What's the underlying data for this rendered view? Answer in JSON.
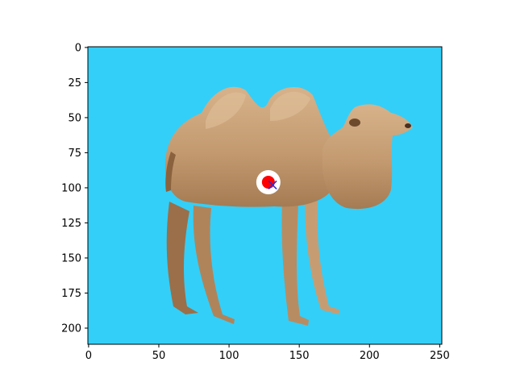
{
  "chart_data": {
    "type": "scatter",
    "title": "",
    "xlabel": "",
    "ylabel": "",
    "xlim": [
      -0.5,
      251.5
    ],
    "ylim": [
      211.5,
      -0.5
    ],
    "y_axis_inverted": true,
    "grid": false,
    "legend": "none",
    "background_image": {
      "subject": "bactrian-camel photograph",
      "background_color": "#33cff8"
    },
    "x_ticks": [
      {
        "value": 0,
        "label": "0"
      },
      {
        "value": 50,
        "label": "50"
      },
      {
        "value": 100,
        "label": "100"
      },
      {
        "value": 150,
        "label": "150"
      },
      {
        "value": 200,
        "label": "200"
      },
      {
        "value": 250,
        "label": "250"
      }
    ],
    "y_ticks": [
      {
        "value": 0,
        "label": "0"
      },
      {
        "value": 25,
        "label": "25"
      },
      {
        "value": 50,
        "label": "50"
      },
      {
        "value": 75,
        "label": "75"
      },
      {
        "value": 100,
        "label": "100"
      },
      {
        "value": 125,
        "label": "125"
      },
      {
        "value": 150,
        "label": "150"
      },
      {
        "value": 175,
        "label": "175"
      },
      {
        "value": 200,
        "label": "200"
      }
    ],
    "markers": [
      {
        "name": "",
        "x": 128,
        "y": 96,
        "shape": "circle",
        "fill": "#ffffff",
        "size": "large"
      },
      {
        "name": "",
        "x": 128,
        "y": 96,
        "shape": "circle",
        "fill": "#ff0000",
        "size": "small"
      },
      {
        "name": "",
        "x": 131,
        "y": 98,
        "shape": "x",
        "color": "#2b2bd6"
      }
    ]
  }
}
